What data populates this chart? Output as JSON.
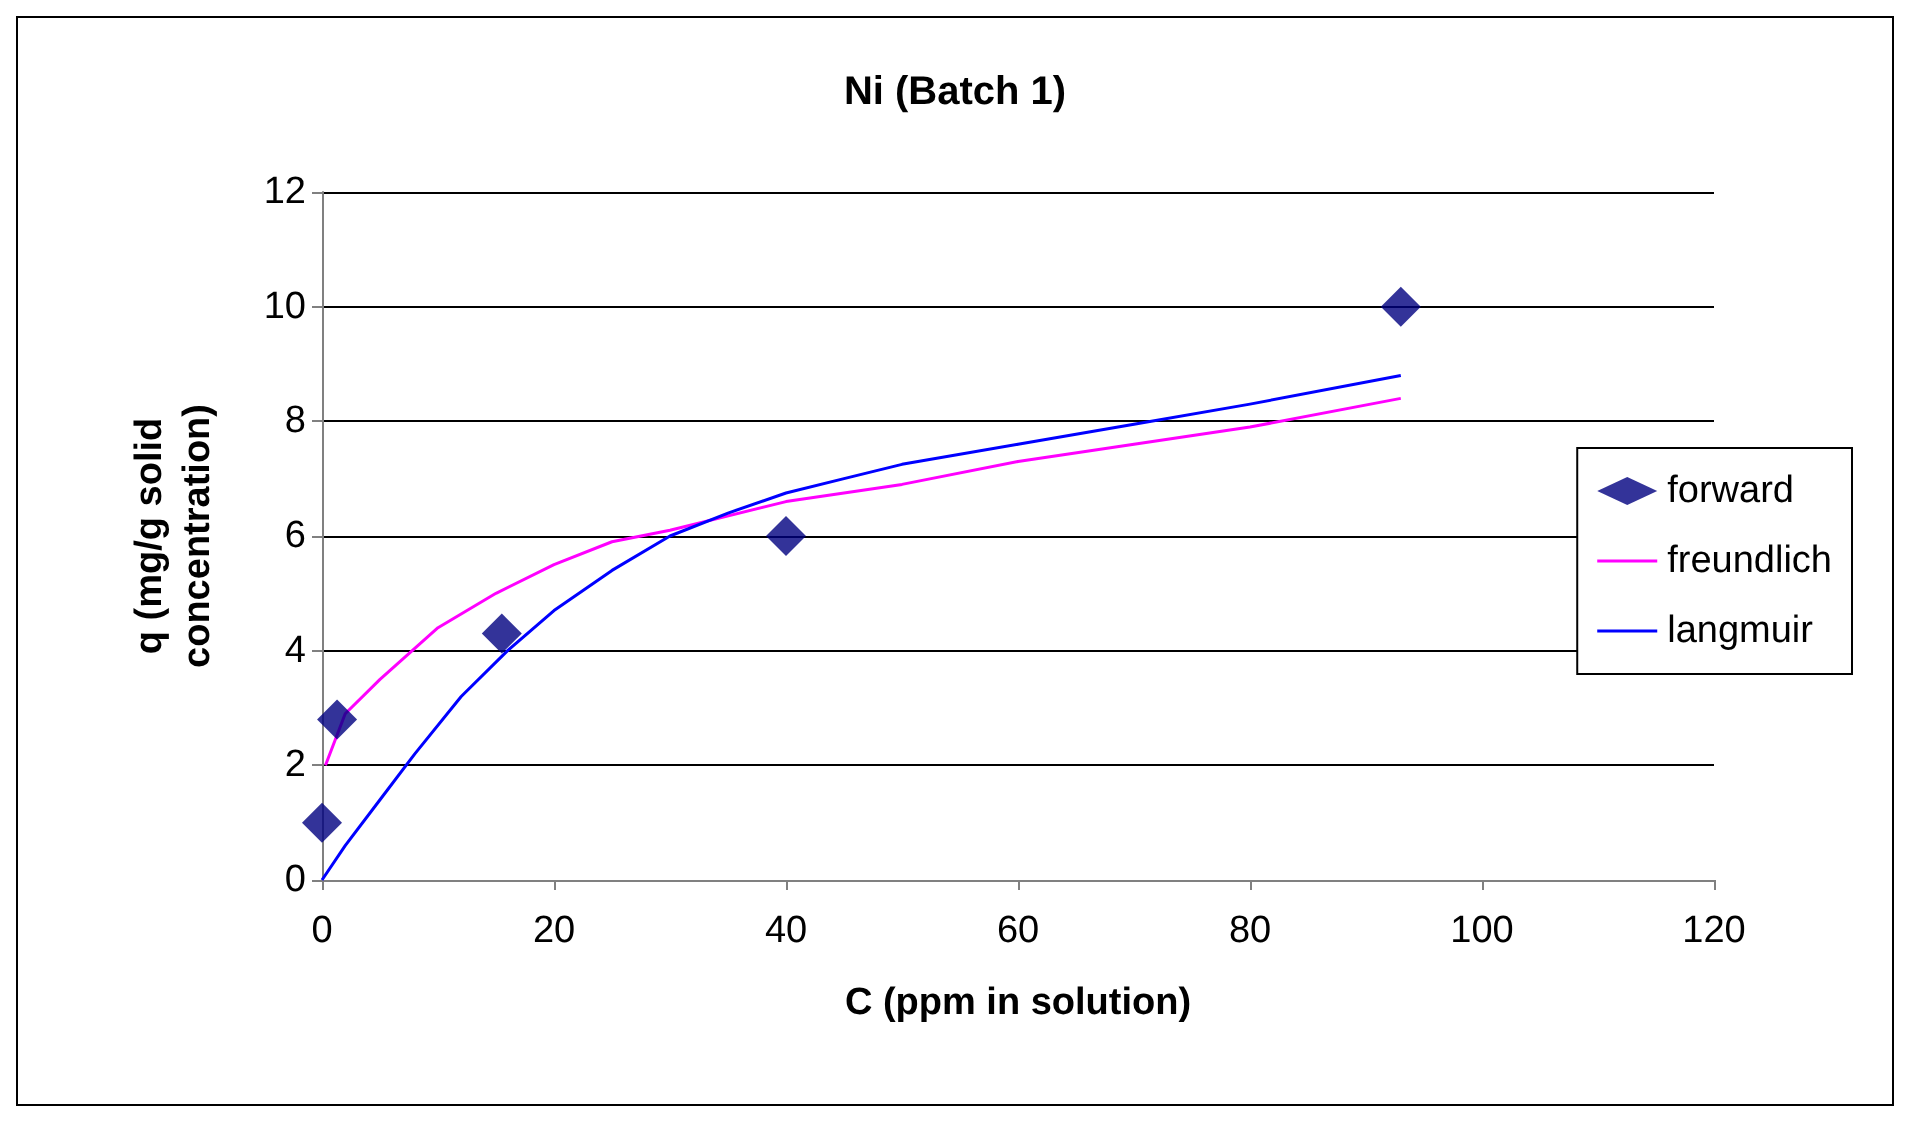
{
  "chart_data": {
    "type": "scatter",
    "title": "Ni (Batch 1)",
    "xlabel": "C (ppm in solution)",
    "ylabel": "q (mg/g solid concentration)",
    "xlim": [
      0,
      120
    ],
    "xticks": [
      0,
      20,
      40,
      60,
      80,
      100,
      120
    ],
    "ylim": [
      0,
      12
    ],
    "yticks": [
      0,
      2,
      4,
      6,
      8,
      10,
      12
    ],
    "grid": "y",
    "legend": "right",
    "series": [
      {
        "name": "forward",
        "marker": "diamond",
        "color": "#000080",
        "x": [
          0,
          1.3,
          15.5,
          40,
          93
        ],
        "values": [
          1,
          2.8,
          4.3,
          6,
          10
        ]
      },
      {
        "name": "freundlich",
        "type": "line",
        "marker": "none",
        "color": "#ff00ff",
        "x": [
          0.3,
          2,
          5,
          10,
          15,
          20,
          25,
          30,
          40,
          50,
          60,
          70,
          80,
          93
        ],
        "values": [
          2,
          2.9,
          3.5,
          4.4,
          5,
          5.5,
          5.9,
          6.1,
          6.6,
          6.9,
          7.3,
          7.6,
          7.9,
          8.4
        ]
      },
      {
        "name": "langmuir",
        "type": "line",
        "marker": "none",
        "color": "#0000ff",
        "x": [
          0,
          2,
          5,
          8,
          12,
          16,
          20,
          25,
          30,
          35,
          40,
          45,
          50,
          60,
          70,
          80,
          93
        ],
        "values": [
          0,
          0.6,
          1.4,
          2.2,
          3.2,
          4,
          4.7,
          5.4,
          6,
          6.4,
          6.75,
          7,
          7.25,
          7.6,
          7.95,
          8.3,
          8.8
        ]
      }
    ]
  }
}
